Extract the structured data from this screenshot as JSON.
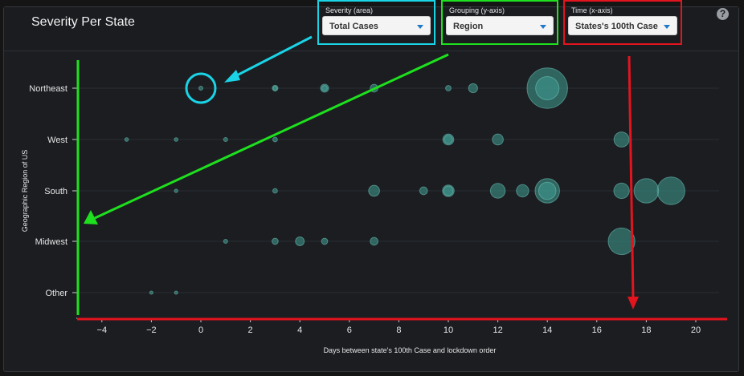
{
  "header": {
    "title": "Severity Per State",
    "help_icon": "question-circle-icon",
    "help_glyph": "?"
  },
  "controls": {
    "severity": {
      "label": "Severity (area)",
      "value": "Total Cases",
      "highlight": "#1ad4e6"
    },
    "grouping": {
      "label": "Grouping (y-axis)",
      "value": "Region",
      "highlight": "#1ee01e"
    },
    "time": {
      "label": "Time (x-axis)",
      "value": "States's 100th Case",
      "highlight": "#e3141e"
    }
  },
  "colors": {
    "bubble": "#3f9e94",
    "annotation_cyan": "#1ad4e6",
    "annotation_green": "#1ee01e",
    "annotation_red": "#e3141e"
  },
  "chart_data": {
    "type": "scatter",
    "xlabel": "Days between state's 100th Case and lockdown order",
    "ylabel": "Geographic Region of US",
    "xlim": [
      -5,
      21
    ],
    "xticks": [
      -4,
      -2,
      0,
      2,
      4,
      6,
      8,
      10,
      12,
      14,
      16,
      18,
      20
    ],
    "categories": [
      "Northeast",
      "West",
      "South",
      "Midwest",
      "Other"
    ],
    "grid": true,
    "size_encoding": "Total Cases (relative)",
    "points": [
      {
        "region": "Northeast",
        "x": 0,
        "size": 0.3
      },
      {
        "region": "Northeast",
        "x": 3,
        "size": 0.6
      },
      {
        "region": "Northeast",
        "x": 3,
        "size": 0.3
      },
      {
        "region": "Northeast",
        "x": 5,
        "size": 1.2
      },
      {
        "region": "Northeast",
        "x": 5,
        "size": 0.55
      },
      {
        "region": "Northeast",
        "x": 7,
        "size": 1.1
      },
      {
        "region": "Northeast",
        "x": 10,
        "size": 0.55
      },
      {
        "region": "Northeast",
        "x": 11,
        "size": 1.5
      },
      {
        "region": "Northeast",
        "x": 14,
        "size": 30
      },
      {
        "region": "Northeast",
        "x": 14,
        "size": 10
      },
      {
        "region": "West",
        "x": -3,
        "size": 0.25
      },
      {
        "region": "West",
        "x": -1,
        "size": 0.25
      },
      {
        "region": "West",
        "x": 1,
        "size": 0.3
      },
      {
        "region": "West",
        "x": 3,
        "size": 0.4
      },
      {
        "region": "West",
        "x": 10,
        "size": 2.2
      },
      {
        "region": "West",
        "x": 10,
        "size": 1.3
      },
      {
        "region": "West",
        "x": 12,
        "size": 2.2
      },
      {
        "region": "West",
        "x": 17,
        "size": 4.2
      },
      {
        "region": "South",
        "x": -1,
        "size": 0.22
      },
      {
        "region": "South",
        "x": 3,
        "size": 0.4
      },
      {
        "region": "South",
        "x": 7,
        "size": 2.2
      },
      {
        "region": "South",
        "x": 9,
        "size": 1.1
      },
      {
        "region": "South",
        "x": 10,
        "size": 2.5
      },
      {
        "region": "South",
        "x": 10,
        "size": 1.6
      },
      {
        "region": "South",
        "x": 12,
        "size": 4.0
      },
      {
        "region": "South",
        "x": 13,
        "size": 2.8
      },
      {
        "region": "South",
        "x": 14,
        "size": 11
      },
      {
        "region": "South",
        "x": 14,
        "size": 5.5
      },
      {
        "region": "South",
        "x": 17,
        "size": 4.4
      },
      {
        "region": "South",
        "x": 18,
        "size": 11
      },
      {
        "region": "South",
        "x": 19,
        "size": 14
      },
      {
        "region": "Midwest",
        "x": 1,
        "size": 0.3
      },
      {
        "region": "Midwest",
        "x": 3,
        "size": 0.7
      },
      {
        "region": "Midwest",
        "x": 4,
        "size": 1.4
      },
      {
        "region": "Midwest",
        "x": 5,
        "size": 0.7
      },
      {
        "region": "Midwest",
        "x": 7,
        "size": 1.1
      },
      {
        "region": "Midwest",
        "x": 17,
        "size": 13
      },
      {
        "region": "Other",
        "x": -2,
        "size": 0.2
      },
      {
        "region": "Other",
        "x": -1,
        "size": 0.2
      }
    ]
  }
}
